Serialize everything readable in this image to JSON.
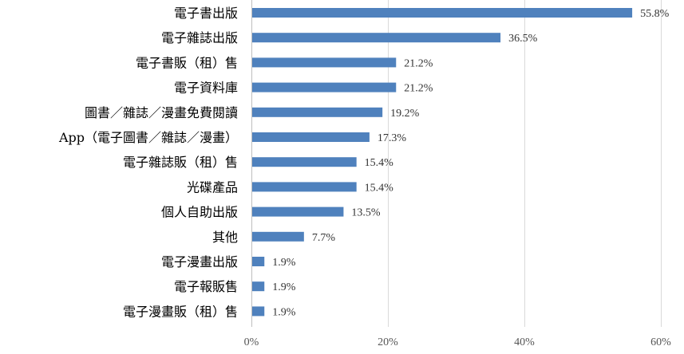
{
  "chart_data": {
    "type": "bar",
    "orientation": "horizontal",
    "title": "",
    "xlabel": "",
    "ylabel": "",
    "xlim": [
      0,
      60
    ],
    "x_ticks": [
      0,
      20,
      40,
      60
    ],
    "x_tick_labels": [
      "0%",
      "20%",
      "40%",
      "60%"
    ],
    "grid": true,
    "bar_color": "#4f81bd",
    "categories": [
      "電子書出版",
      "電子雜誌出版",
      "電子書販（租）售",
      "電子資料庫",
      "圖書／雜誌／漫畫免費閱讀",
      "App（電子圖書／雜誌／漫畫）",
      "電子雜誌販（租）售",
      "光碟產品",
      "個人自助出版",
      "其他",
      "電子漫畫出版",
      "電子報販售",
      "電子漫畫販（租）售"
    ],
    "values": [
      55.8,
      36.5,
      21.2,
      21.2,
      19.2,
      17.3,
      15.4,
      15.4,
      13.5,
      7.7,
      1.9,
      1.9,
      1.9
    ],
    "value_labels": [
      "55.8%",
      "36.5%",
      "21.2%",
      "21.2%",
      "19.2%",
      "17.3%",
      "15.4%",
      "15.4%",
      "13.5%",
      "7.7%",
      "1.9%",
      "1.9%",
      "1.9%"
    ]
  }
}
